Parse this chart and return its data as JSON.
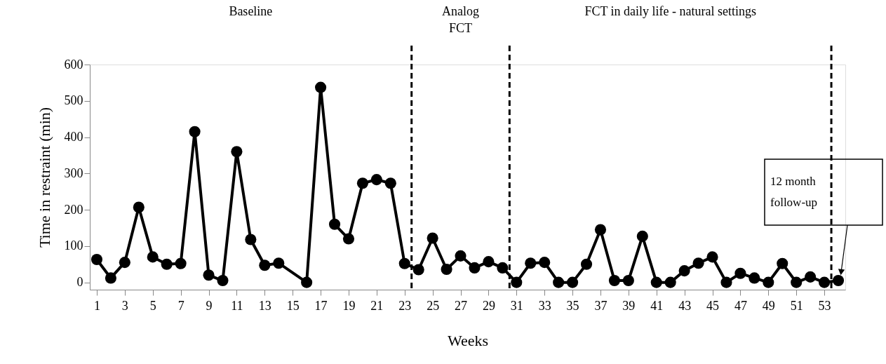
{
  "chart_data": {
    "type": "line",
    "xlabel": "Weeks",
    "ylabel": "Time in restraint (min)",
    "annotations": [
      "Baseline",
      "Analog\nFCT",
      "FCT in daily life - natural settings",
      "12 month\nfollow-up"
    ],
    "x": [
      1,
      2,
      3,
      4,
      5,
      6,
      7,
      8,
      9,
      10,
      11,
      12,
      13,
      14,
      16,
      17,
      18,
      19,
      20,
      21,
      22,
      23,
      24,
      25,
      26,
      27,
      28,
      29,
      30,
      31,
      32,
      33,
      34,
      35,
      36,
      37,
      38,
      39,
      40,
      41,
      42,
      43,
      44,
      45,
      46,
      47,
      48,
      49,
      50,
      51,
      52,
      53,
      54
    ],
    "series": [
      {
        "color": "#000000",
        "values": [
          63,
          12,
          55,
          207,
          70,
          50,
          52,
          415,
          20,
          5,
          360,
          118,
          47,
          53,
          0,
          537,
          160,
          120,
          273,
          283,
          273,
          52,
          35,
          122,
          36,
          73,
          40,
          57,
          40,
          0,
          53,
          55,
          0,
          0,
          50,
          145,
          5,
          5,
          127,
          0,
          0,
          32,
          53,
          70,
          0,
          25,
          12,
          0,
          52,
          0,
          15,
          0,
          5
        ]
      }
    ],
    "xlim": [
      0.5,
      54.5
    ],
    "xticks": [
      1,
      3,
      5,
      7,
      9,
      11,
      13,
      15,
      17,
      19,
      21,
      23,
      25,
      27,
      29,
      31,
      33,
      35,
      37,
      39,
      41,
      43,
      45,
      47,
      49,
      51,
      53
    ],
    "ylim": [
      -20,
      600
    ],
    "yticks": [
      0,
      100,
      200,
      300,
      400,
      500,
      600
    ],
    "ref_lines": [
      {
        "axis": "x",
        "value": 23.5,
        "color": "#000000",
        "line_style": "dashed"
      },
      {
        "axis": "x",
        "value": 30.5,
        "color": "#000000",
        "line_style": "dashed"
      },
      {
        "axis": "x",
        "value": 53.5,
        "color": "#000000",
        "line_style": "dashed"
      }
    ],
    "marker": "circle",
    "line_style": "solid"
  }
}
